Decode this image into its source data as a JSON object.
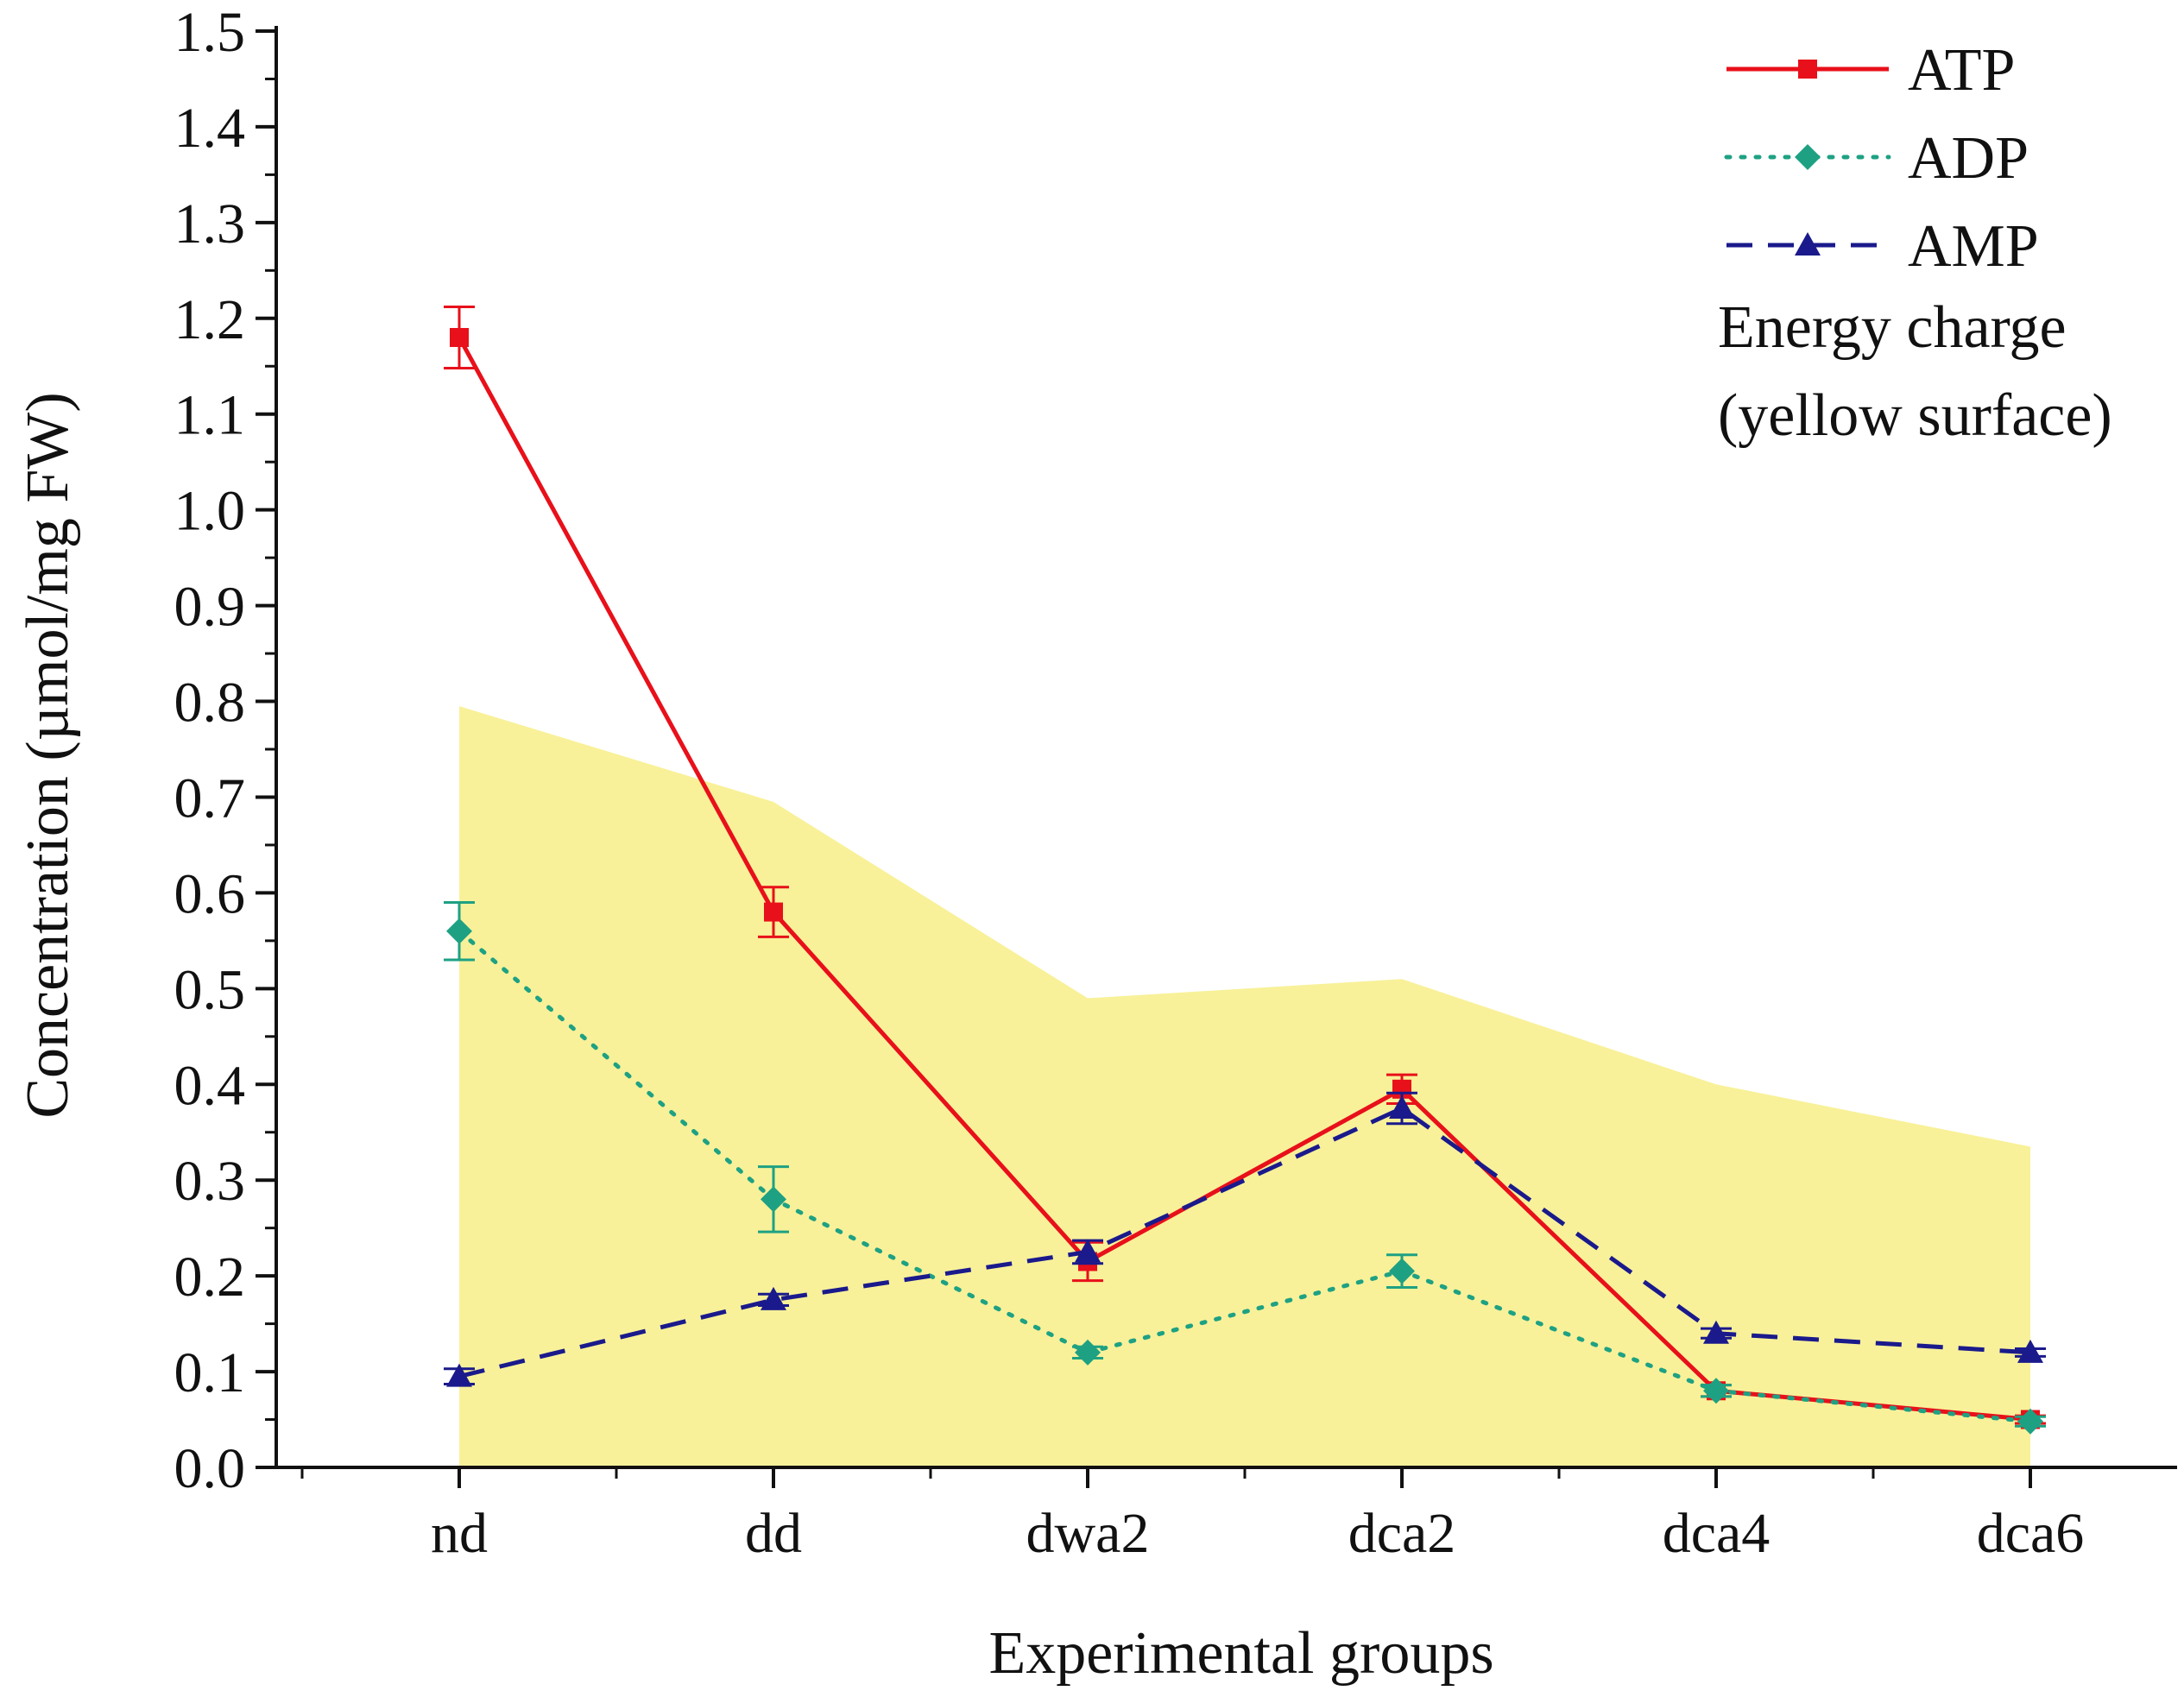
{
  "chart_data": {
    "type": "line",
    "title": "",
    "xlabel": "Experimental groups",
    "ylabel": "Concentration (µmol/mg FW)",
    "categories": [
      "nd",
      "dd",
      "dwa2",
      "dca2",
      "dca4",
      "dca6"
    ],
    "ylim": [
      0.0,
      1.5
    ],
    "yticks": [
      "0.0",
      "0.1",
      "0.2",
      "0.3",
      "0.4",
      "0.5",
      "0.6",
      "0.7",
      "0.8",
      "0.9",
      "1.0",
      "1.1",
      "1.2",
      "1.3",
      "1.4",
      "1.5"
    ],
    "grid": false,
    "legend_position": "top-right",
    "series": [
      {
        "name": "ATP",
        "color": "#e8101a",
        "line_style": "solid",
        "marker": "square",
        "values": [
          1.18,
          0.58,
          0.215,
          0.395,
          0.08,
          0.05
        ],
        "errors": [
          0.032,
          0.026,
          0.02,
          0.015,
          0.006,
          0.004
        ]
      },
      {
        "name": "ADP",
        "color": "#1ea183",
        "line_style": "dotted",
        "marker": "diamond",
        "values": [
          0.56,
          0.28,
          0.12,
          0.205,
          0.08,
          0.048
        ],
        "errors": [
          0.03,
          0.034,
          0.006,
          0.017,
          0.006,
          0.005
        ]
      },
      {
        "name": "AMP",
        "color": "#1a1a8c",
        "line_style": "dashed",
        "marker": "triangle",
        "values": [
          0.095,
          0.175,
          0.225,
          0.375,
          0.14,
          0.12
        ],
        "errors": [
          0.008,
          0.006,
          0.012,
          0.016,
          0.005,
          0.004
        ]
      }
    ],
    "area_series": {
      "name": "Energy charge",
      "color": "#f8f199",
      "values": [
        0.795,
        0.695,
        0.49,
        0.51,
        0.4,
        0.335
      ]
    },
    "legend_note": [
      "Energy charge",
      "(yellow surface)"
    ]
  }
}
